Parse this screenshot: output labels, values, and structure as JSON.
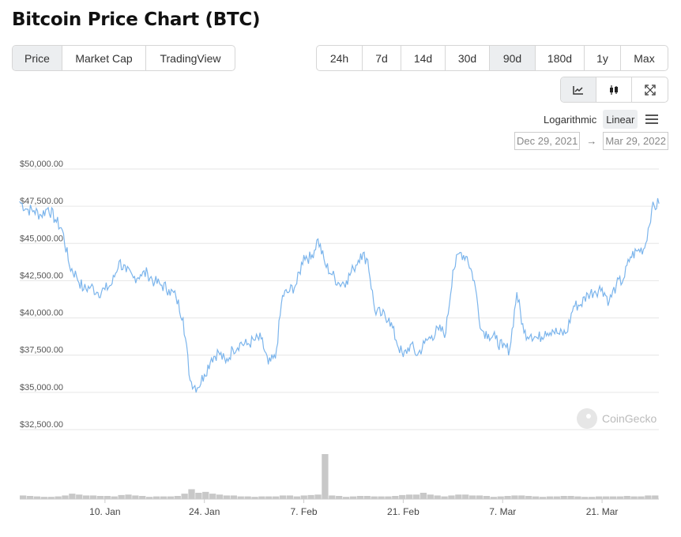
{
  "title": "Bitcoin Price Chart (BTC)",
  "tabs": [
    {
      "label": "Price",
      "active": true
    },
    {
      "label": "Market Cap",
      "active": false
    },
    {
      "label": "TradingView",
      "active": false
    }
  ],
  "ranges": [
    {
      "label": "24h",
      "active": false
    },
    {
      "label": "7d",
      "active": false
    },
    {
      "label": "14d",
      "active": false
    },
    {
      "label": "30d",
      "active": false
    },
    {
      "label": "90d",
      "active": true
    },
    {
      "label": "180d",
      "active": false
    },
    {
      "label": "1y",
      "active": false
    },
    {
      "label": "Max",
      "active": false
    }
  ],
  "views": [
    {
      "icon": "line-chart-icon",
      "active": true
    },
    {
      "icon": "candlestick-icon",
      "active": false
    },
    {
      "icon": "fullscreen-icon",
      "active": false
    }
  ],
  "scale": {
    "log_label": "Logarithmic",
    "linear_label": "Linear",
    "selected": "Linear",
    "menu_icon": "hamburger-menu-icon"
  },
  "date_range": {
    "from": "Dec 29, 2021",
    "arrow": "→",
    "to": "Mar 29, 2022"
  },
  "watermark": "CoinGecko",
  "colors": {
    "line": "#7cb5ec",
    "volume": "#c8c8c8",
    "grid": "#e6e6e6",
    "active_bg": "#eceef0"
  },
  "chart_data": {
    "type": "line",
    "x": [
      "Dec 29",
      "Dec 30",
      "Dec 31",
      "Jan 1",
      "Jan 2",
      "Jan 3",
      "Jan 4",
      "Jan 5",
      "Jan 6",
      "Jan 7",
      "Jan 8",
      "Jan 9",
      "Jan 10",
      "Jan 11",
      "Jan 12",
      "Jan 13",
      "Jan 14",
      "Jan 15",
      "Jan 16",
      "Jan 17",
      "Jan 18",
      "Jan 19",
      "Jan 20",
      "Jan 21",
      "Jan 22",
      "Jan 23",
      "Jan 24",
      "Jan 25",
      "Jan 26",
      "Jan 27",
      "Jan 28",
      "Jan 29",
      "Jan 30",
      "Jan 31",
      "Feb 1",
      "Feb 2",
      "Feb 3",
      "Feb 4",
      "Feb 5",
      "Feb 6",
      "Feb 7",
      "Feb 8",
      "Feb 9",
      "Feb 10",
      "Feb 11",
      "Feb 12",
      "Feb 13",
      "Feb 14",
      "Feb 15",
      "Feb 16",
      "Feb 17",
      "Feb 18",
      "Feb 19",
      "Feb 20",
      "Feb 21",
      "Feb 22",
      "Feb 23",
      "Feb 24",
      "Feb 25",
      "Feb 26",
      "Feb 27",
      "Feb 28",
      "Mar 1",
      "Mar 2",
      "Mar 3",
      "Mar 4",
      "Mar 5",
      "Mar 6",
      "Mar 7",
      "Mar 8",
      "Mar 9",
      "Mar 10",
      "Mar 11",
      "Mar 12",
      "Mar 13",
      "Mar 14",
      "Mar 15",
      "Mar 16",
      "Mar 17",
      "Mar 18",
      "Mar 19",
      "Mar 20",
      "Mar 21",
      "Mar 22",
      "Mar 23",
      "Mar 24",
      "Mar 25",
      "Mar 26",
      "Mar 27",
      "Mar 28",
      "Mar 29"
    ],
    "values": [
      47800,
      47300,
      47200,
      46900,
      47400,
      46600,
      45900,
      43500,
      42800,
      41900,
      42100,
      41700,
      41900,
      42300,
      43800,
      43100,
      42700,
      42900,
      43000,
      42400,
      42200,
      41900,
      41400,
      40000,
      35800,
      35300,
      36200,
      37300,
      37700,
      37000,
      37900,
      38300,
      38200,
      38500,
      38600,
      36900,
      37300,
      41500,
      41800,
      42300,
      44200,
      44000,
      45300,
      43600,
      42900,
      42300,
      42500,
      43300,
      44300,
      43900,
      40500,
      40200,
      40000,
      38500,
      37400,
      38200,
      37500,
      38300,
      38800,
      39200,
      39000,
      43200,
      44400,
      44100,
      42500,
      39200,
      38900,
      38600,
      38000,
      37900,
      41700,
      39000,
      38900,
      38600,
      39100,
      39200,
      38900,
      39000,
      40800,
      40900,
      41600,
      41800,
      42000,
      41100,
      42200,
      42600,
      44100,
      44500,
      44700,
      47300,
      47700
    ],
    "ylim": [
      32500,
      50000
    ],
    "yticks": [
      32500,
      35000,
      37500,
      40000,
      42500,
      45000,
      47500,
      50000
    ],
    "ytick_labels": [
      "$32,500.00",
      "$35,000.00",
      "$37,500.00",
      "$40,000.00",
      "$42,500.00",
      "$45,000.00",
      "$47,500.00",
      "$50,000.00"
    ],
    "xtick_labels": [
      {
        "label": "10. Jan",
        "index": 12
      },
      {
        "label": "24. Jan",
        "index": 26
      },
      {
        "label": "7. Feb",
        "index": 40
      },
      {
        "label": "21. Feb",
        "index": 54
      },
      {
        "label": "7. Mar",
        "index": 68
      },
      {
        "label": "21. Mar",
        "index": 82
      }
    ],
    "volume": [
      0.08,
      0.07,
      0.06,
      0.05,
      0.05,
      0.06,
      0.08,
      0.12,
      0.1,
      0.08,
      0.08,
      0.07,
      0.07,
      0.06,
      0.09,
      0.1,
      0.08,
      0.07,
      0.05,
      0.06,
      0.06,
      0.06,
      0.07,
      0.12,
      0.22,
      0.14,
      0.16,
      0.12,
      0.1,
      0.08,
      0.08,
      0.06,
      0.06,
      0.05,
      0.06,
      0.06,
      0.06,
      0.08,
      0.08,
      0.06,
      0.08,
      0.09,
      0.1,
      1.0,
      0.08,
      0.07,
      0.05,
      0.06,
      0.07,
      0.07,
      0.06,
      0.06,
      0.06,
      0.07,
      0.09,
      0.1,
      0.1,
      0.14,
      0.1,
      0.08,
      0.06,
      0.08,
      0.1,
      0.1,
      0.08,
      0.08,
      0.07,
      0.05,
      0.06,
      0.07,
      0.08,
      0.08,
      0.07,
      0.06,
      0.05,
      0.06,
      0.06,
      0.07,
      0.07,
      0.06,
      0.05,
      0.05,
      0.06,
      0.06,
      0.06,
      0.06,
      0.07,
      0.06,
      0.06,
      0.08,
      0.08
    ],
    "grid": true,
    "legend": "none"
  }
}
